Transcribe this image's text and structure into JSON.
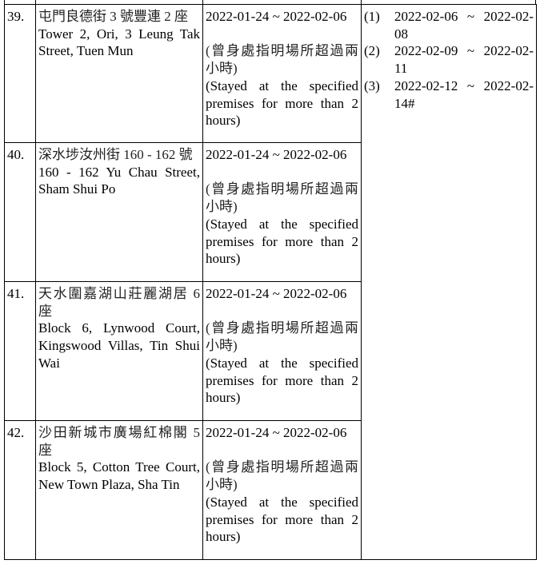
{
  "rows": [
    {
      "no": "39.",
      "address_zh": "屯門良德街 3 號豐連 2 座",
      "address_en": "Tower 2, Ori, 3 Leung Tak Street, Tuen Mun",
      "period": "2022-01-24 ~ 2022-02-06",
      "note_zh": "(曾身處指明場所超過兩小時)",
      "note_en": "(Stayed at the specified premises for more than 2 hours)"
    },
    {
      "no": "40.",
      "address_zh": "深水埗汝州街 160 - 162 號",
      "address_en": "160 - 162 Yu Chau Street, Sham Shui Po",
      "period": "2022-01-24 ~ 2022-02-06",
      "note_zh": "(曾身處指明場所超過兩小時)",
      "note_en": "(Stayed at the specified premises for more than 2 hours)"
    },
    {
      "no": "41.",
      "address_zh": "天水圍嘉湖山莊麗湖居 6 座",
      "address_en": "Block 6, Lynwood Court, Kingswood Villas, Tin Shui Wai",
      "period": "2022-01-24 ~ 2022-02-06",
      "note_zh": "(曾身處指明場所超過兩小時)",
      "note_en": "(Stayed at the specified premises for more than 2 hours)"
    },
    {
      "no": "42.",
      "address_zh": "沙田新城市廣場紅棉閣 5 座",
      "address_en": "Block 5, Cotton Tree Court, New Town Plaza, Sha Tin",
      "period": "2022-01-24 ~ 2022-02-06",
      "note_zh": "(曾身處指明場所超過兩小時)",
      "note_en": "(Stayed at the specified premises for more than 2 hours)"
    }
  ],
  "test_dates": [
    {
      "label": "(1)",
      "value": "2022-02-06 ~ 2022-02-08"
    },
    {
      "label": "(2)",
      "value": "2022-02-09 ~ 2022-02-11"
    },
    {
      "label": "(3)",
      "value": "2022-02-12 ~ 2022-02-14#"
    }
  ]
}
